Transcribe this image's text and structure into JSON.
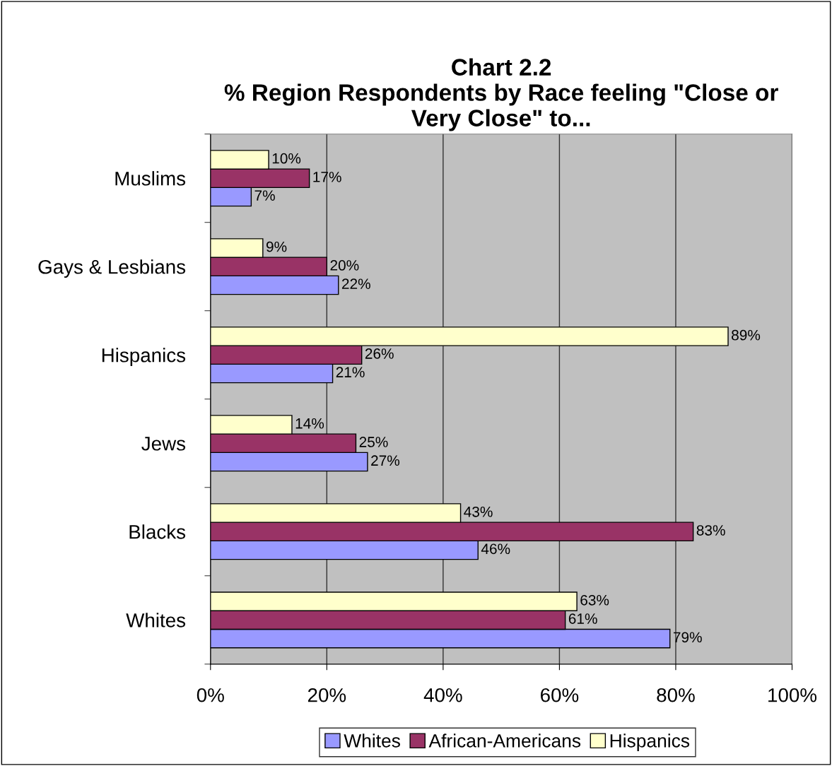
{
  "chart_data": {
    "type": "bar",
    "orientation": "horizontal",
    "title": "Chart 2.2\n% Region Respondents by Race feeling \"Close or\nVery Close\" to...",
    "categories": [
      "Muslims",
      "Gays & Lesbians",
      "Hispanics",
      "Jews",
      "Blacks",
      "Whites"
    ],
    "series": [
      {
        "name": "Whites",
        "color": "#9999ff",
        "values": [
          7,
          22,
          21,
          27,
          46,
          79
        ],
        "value_labels": [
          "7%",
          "22%",
          "21%",
          "27%",
          "46%",
          "79%"
        ]
      },
      {
        "name": "African-Americans",
        "color": "#993366",
        "values": [
          17,
          20,
          26,
          25,
          83,
          61
        ],
        "value_labels": [
          "17%",
          "20%",
          "26%",
          "25%",
          "83%",
          "61%"
        ]
      },
      {
        "name": "Hispanics",
        "color": "#ffffcc",
        "values": [
          10,
          9,
          89,
          14,
          43,
          63
        ],
        "value_labels": [
          "10%",
          "9%",
          "89%",
          "14%",
          "43%",
          "63%"
        ]
      }
    ],
    "xlim": [
      0,
      100
    ],
    "xticks": [
      {
        "value": 0,
        "label": "0%"
      },
      {
        "value": 20,
        "label": "20%"
      },
      {
        "value": 40,
        "label": "40%"
      },
      {
        "value": 60,
        "label": "60%"
      },
      {
        "value": 80,
        "label": "80%"
      },
      {
        "value": 100,
        "label": "100%"
      }
    ],
    "grid": "x",
    "legend": "bottom"
  }
}
